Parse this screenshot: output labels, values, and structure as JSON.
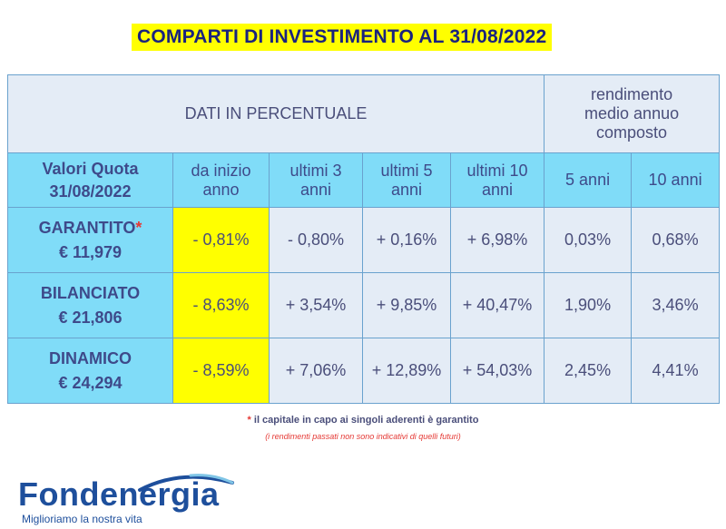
{
  "title": "COMPARTI DI INVESTIMENTO AL 31/08/2022",
  "table": {
    "group_header": "DATI IN PERCENTUALE",
    "rendimento_header": [
      "rendimento",
      "medio annuo",
      "composto"
    ],
    "col_headers": {
      "valori_quota": [
        "Valori Quota",
        "31/08/2022"
      ],
      "inizio_anno": [
        "da inizio",
        "anno"
      ],
      "ultimi_3": [
        "ultimi 3",
        "anni"
      ],
      "ultimi_5": [
        "ultimi 5",
        "anni"
      ],
      "ultimi_10": [
        "ultimi 10",
        "anni"
      ],
      "anni_5": "5 anni",
      "anni_10": "10 anni"
    },
    "rows": [
      {
        "name": "GARANTITO",
        "star": "*",
        "quota": "€ 11,979",
        "values": [
          "- 0,81%",
          "- 0,80%",
          "+ 0,16%",
          "+ 6,98%",
          "0,03%",
          "0,68%"
        ]
      },
      {
        "name": "BILANCIATO",
        "star": "",
        "quota": "€ 21,806",
        "values": [
          "- 8,63%",
          "+ 3,54%",
          "+ 9,85%",
          "+ 40,47%",
          "1,90%",
          "3,46%"
        ]
      },
      {
        "name": "DINAMICO",
        "star": "",
        "quota": "€ 24,294",
        "values": [
          "- 8,59%",
          "+ 7,06%",
          "+ 12,89%",
          "+ 54,03%",
          "2,45%",
          "4,41%"
        ]
      }
    ]
  },
  "notes": {
    "star": "*",
    "line1": " il capitale in capo ai singoli aderenti è garantito",
    "line2": "(i rendimenti passati non sono indicativi di quelli futuri)"
  },
  "logo": {
    "name": "Fondenergia",
    "tagline": "Miglioriamo la nostra vita"
  },
  "colors": {
    "title_bg": "#ffff00",
    "header_cyan": "#80dcf8",
    "cell_light": "#e4ecf6",
    "highlight_yellow": "#ffff00",
    "star_red": "#e53935",
    "brand_blue": "#1e4f9c"
  }
}
